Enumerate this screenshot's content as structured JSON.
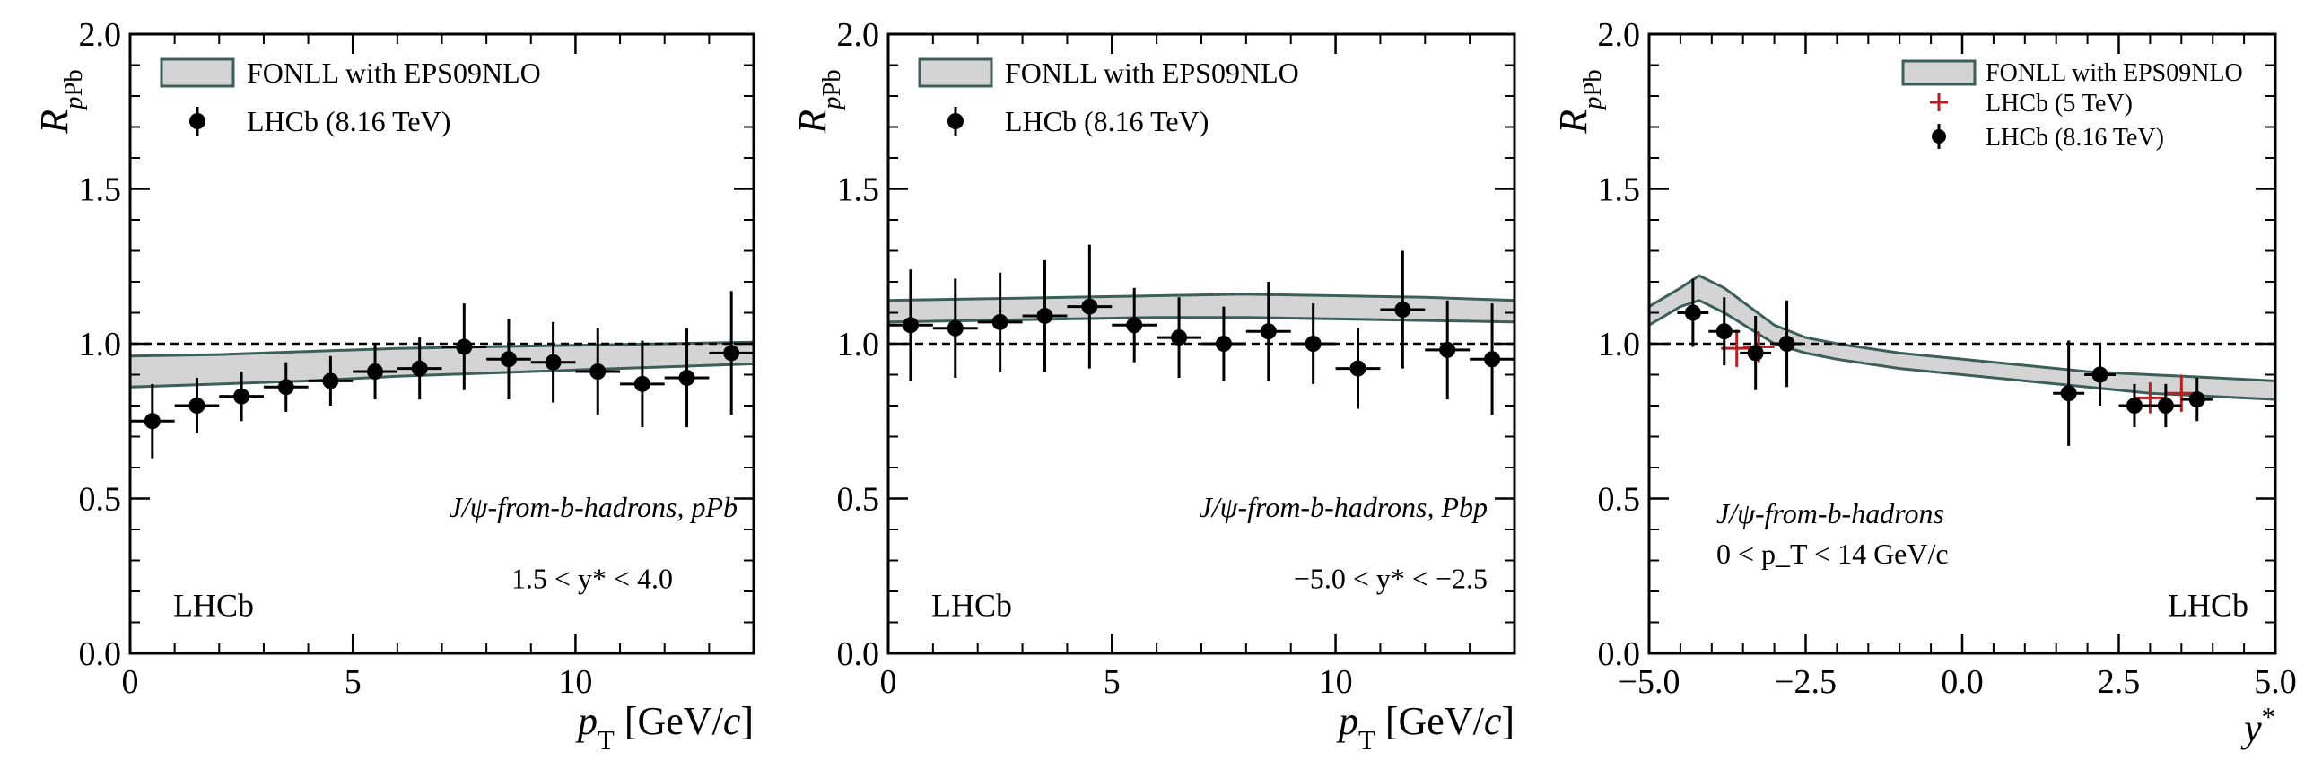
{
  "chart_data": [
    {
      "type": "scatter",
      "xlabel": "p_T [GeV/c]",
      "ylabel": "R_pPb",
      "xlim": [
        0,
        14
      ],
      "ylim": [
        0,
        2
      ],
      "xticks": [
        "0",
        "5",
        "10"
      ],
      "yticks": [
        "0.0",
        "0.5",
        "1.0",
        "1.5",
        "2.0"
      ],
      "legend_placement": "top-left",
      "legend": [
        "FONLL with EPS09NLO",
        "LHCb (8.16 TeV)"
      ],
      "annotations": [
        "J/ψ-from-b-hadrons, pPb",
        "1.5 < y* < 4.0"
      ],
      "watermark": "LHCb",
      "reference_line": 1.0,
      "band": {
        "name": "FONLL with EPS09NLO",
        "x": [
          0,
          2,
          4,
          6,
          8,
          10,
          12,
          14
        ],
        "low": [
          0.86,
          0.87,
          0.88,
          0.895,
          0.905,
          0.915,
          0.925,
          0.935
        ],
        "high": [
          0.96,
          0.965,
          0.975,
          0.985,
          0.99,
          0.995,
          1.0,
          1.005
        ]
      },
      "series": [
        {
          "name": "LHCb (8.16 TeV)",
          "color": "#000000",
          "x": [
            0.5,
            1.5,
            2.5,
            3.5,
            4.5,
            5.5,
            6.5,
            7.5,
            8.5,
            9.5,
            10.5,
            11.5,
            12.5,
            13.5
          ],
          "y": [
            0.75,
            0.8,
            0.83,
            0.86,
            0.88,
            0.91,
            0.92,
            0.99,
            0.95,
            0.94,
            0.91,
            0.87,
            0.89,
            0.97
          ],
          "yerr": [
            0.12,
            0.09,
            0.08,
            0.08,
            0.08,
            0.09,
            0.1,
            0.14,
            0.13,
            0.13,
            0.14,
            0.14,
            0.16,
            0.2
          ],
          "xerr": 0.5
        }
      ]
    },
    {
      "type": "scatter",
      "xlabel": "p_T [GeV/c]",
      "ylabel": "R_pPb",
      "xlim": [
        0,
        14
      ],
      "ylim": [
        0,
        2
      ],
      "xticks": [
        "0",
        "5",
        "10"
      ],
      "yticks": [
        "0.0",
        "0.5",
        "1.0",
        "1.5",
        "2.0"
      ],
      "legend_placement": "top-left",
      "legend": [
        "FONLL with EPS09NLO",
        "LHCb (8.16 TeV)"
      ],
      "annotations": [
        "J/ψ-from-b-hadrons, Pbp",
        "−5.0 < y* < −2.5"
      ],
      "watermark": "LHCb",
      "reference_line": 1.0,
      "band": {
        "name": "FONLL with EPS09NLO",
        "x": [
          0,
          2,
          4,
          6,
          8,
          10,
          12,
          14
        ],
        "low": [
          1.07,
          1.075,
          1.08,
          1.085,
          1.085,
          1.08,
          1.075,
          1.07
        ],
        "high": [
          1.14,
          1.145,
          1.15,
          1.155,
          1.16,
          1.155,
          1.15,
          1.14
        ]
      },
      "series": [
        {
          "name": "LHCb (8.16 TeV)",
          "color": "#000000",
          "x": [
            0.5,
            1.5,
            2.5,
            3.5,
            4.5,
            5.5,
            6.5,
            7.5,
            8.5,
            9.5,
            10.5,
            11.5,
            12.5,
            13.5
          ],
          "y": [
            1.06,
            1.05,
            1.07,
            1.09,
            1.12,
            1.06,
            1.02,
            1.0,
            1.04,
            1.0,
            0.92,
            1.11,
            0.98,
            0.95
          ],
          "yerr": [
            0.18,
            0.16,
            0.16,
            0.18,
            0.2,
            0.12,
            0.13,
            0.12,
            0.16,
            0.13,
            0.13,
            0.19,
            0.16,
            0.18
          ],
          "xerr": 0.5
        }
      ]
    },
    {
      "type": "scatter",
      "xlabel": "y*",
      "ylabel": "R_pPb",
      "xlim": [
        -5.0,
        5.0
      ],
      "ylim": [
        0,
        2
      ],
      "xticks": [
        "−5.0",
        "−2.5",
        "0.0",
        "2.5",
        "5.0"
      ],
      "yticks": [
        "0.0",
        "0.5",
        "1.0",
        "1.5",
        "2.0"
      ],
      "legend_placement": "top-right",
      "legend": [
        "FONLL with EPS09NLO",
        "LHCb (5 TeV)",
        "LHCb (8.16 TeV)"
      ],
      "annotations": [
        "J/ψ-from-b-hadrons",
        "0 < p_T < 14 GeV/c"
      ],
      "watermark": "LHCb",
      "reference_line": 1.0,
      "band": {
        "name": "FONLL with EPS09NLO",
        "x": [
          -5.0,
          -4.5,
          -4.2,
          -3.8,
          -3.0,
          -2.5,
          -2.0,
          -1.0,
          0.0,
          1.0,
          2.0,
          3.0,
          4.0,
          5.0
        ],
        "low": [
          1.06,
          1.12,
          1.14,
          1.1,
          1.0,
          0.97,
          0.95,
          0.92,
          0.9,
          0.88,
          0.86,
          0.84,
          0.83,
          0.82
        ],
        "high": [
          1.12,
          1.18,
          1.22,
          1.18,
          1.06,
          1.02,
          1.0,
          0.97,
          0.95,
          0.93,
          0.91,
          0.9,
          0.89,
          0.88
        ]
      },
      "series": [
        {
          "name": "LHCb (5 TeV)",
          "color": "#b22222",
          "x": [
            -3.6,
            -3.25,
            3.0,
            3.5
          ],
          "y": [
            0.985,
            0.99,
            0.825,
            0.84
          ],
          "yerr": [
            0.06,
            0.05,
            0.05,
            0.06
          ],
          "xerr": [
            0.25,
            0.25,
            0.25,
            0.25
          ]
        },
        {
          "name": "LHCb (8.16 TeV)",
          "color": "#000000",
          "x": [
            -4.3,
            -3.8,
            -3.3,
            -2.8,
            1.7,
            2.2,
            2.75,
            3.25,
            3.75
          ],
          "y": [
            1.1,
            1.04,
            0.97,
            1.0,
            0.84,
            0.9,
            0.8,
            0.8,
            0.82
          ],
          "yerr": [
            0.11,
            0.11,
            0.12,
            0.14,
            0.17,
            0.1,
            0.07,
            0.07,
            0.07
          ],
          "xerr": [
            0.25,
            0.25,
            0.25,
            0.25,
            0.25,
            0.25,
            0.25,
            0.25,
            0.25
          ]
        }
      ]
    }
  ]
}
